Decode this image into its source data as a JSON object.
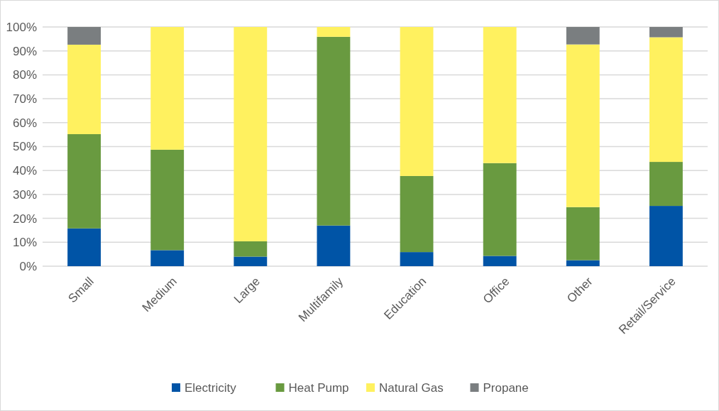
{
  "chart_data": {
    "type": "bar",
    "stacked": true,
    "categories": [
      "Small",
      "Medium",
      "Large",
      "Multifamily",
      "Education",
      "Office",
      "Other",
      "Retail/Service"
    ],
    "series": [
      {
        "name": "Electricity",
        "color": "#0054a6",
        "values": [
          15.8,
          6.7,
          4.0,
          17.0,
          5.9,
          4.3,
          2.5,
          25.2
        ]
      },
      {
        "name": "Heat Pump",
        "color": "#699a40",
        "values": [
          39.4,
          42.0,
          6.4,
          78.9,
          31.8,
          38.8,
          22.2,
          18.4
        ]
      },
      {
        "name": "Natural Gas",
        "color": "#fff15f",
        "values": [
          37.4,
          51.3,
          89.6,
          4.1,
          62.3,
          56.9,
          68.0,
          52.1
        ]
      },
      {
        "name": "Propane",
        "color": "#7a7e80",
        "values": [
          7.4,
          0,
          0,
          0,
          0,
          0,
          7.3,
          4.3
        ]
      }
    ],
    "ylim": [
      0,
      100
    ],
    "yticks": [
      {
        "value": 0,
        "label": "0%"
      },
      {
        "value": 10,
        "label": "10%"
      },
      {
        "value": 20,
        "label": "20%"
      },
      {
        "value": 30,
        "label": "30%"
      },
      {
        "value": 40,
        "label": "40%"
      },
      {
        "value": 50,
        "label": "50%"
      },
      {
        "value": 60,
        "label": "60%"
      },
      {
        "value": 70,
        "label": "70%"
      },
      {
        "value": 80,
        "label": "80%"
      },
      {
        "value": 90,
        "label": "90%"
      },
      {
        "value": 100,
        "label": "100%"
      }
    ],
    "grid": "y",
    "legend": "bottom"
  }
}
